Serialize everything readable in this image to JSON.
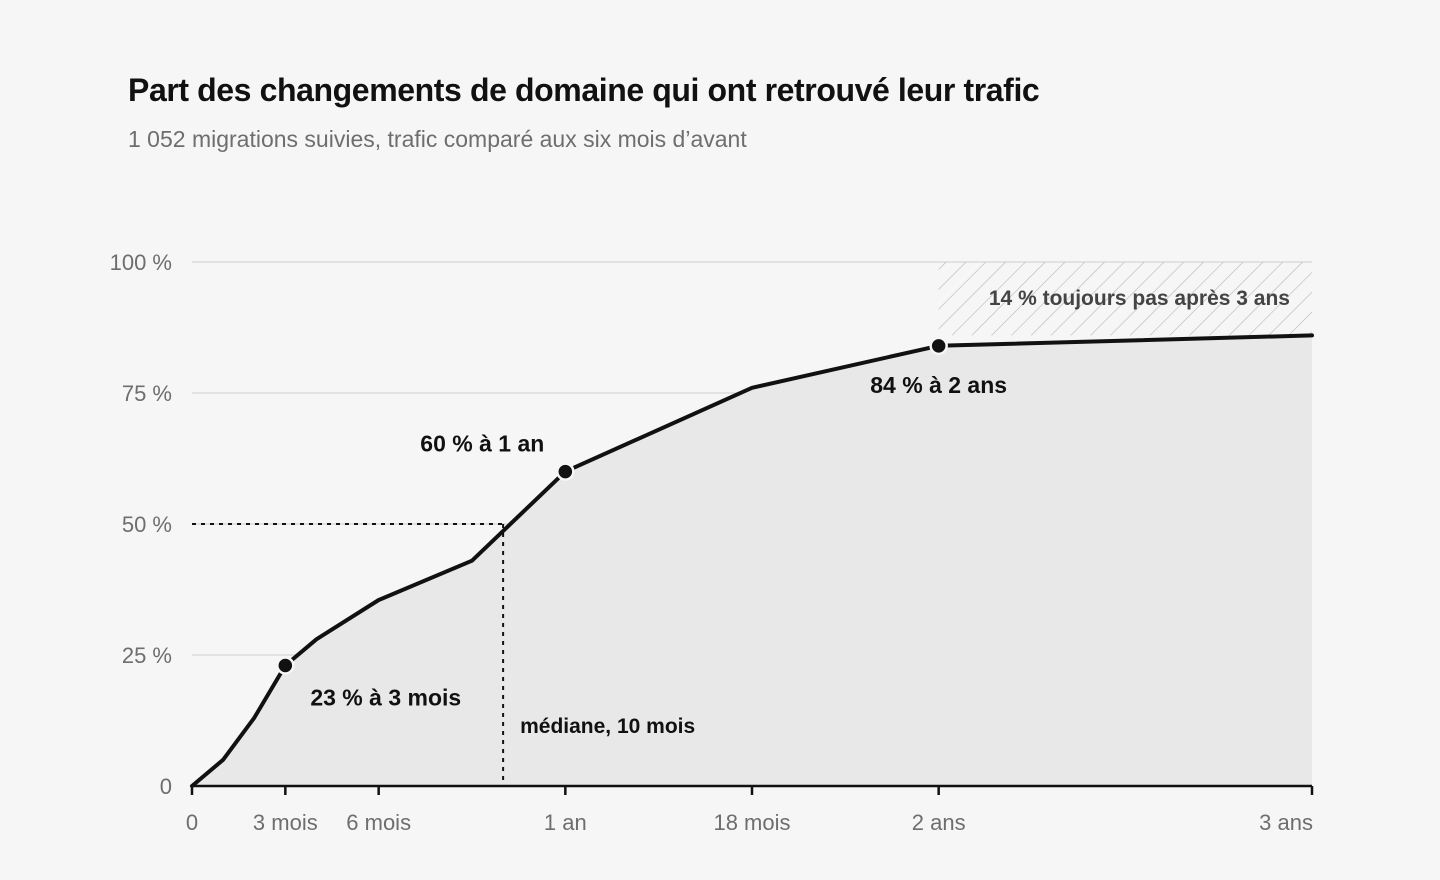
{
  "chart_data": {
    "type": "area",
    "title": "Part des changements de domaine qui ont retrouvé leur trafic",
    "subtitle": "1 052 migrations suivies, trafic comparé aux six mois d’avant",
    "xlabel": "",
    "ylabel": "",
    "x_unit": "mois",
    "xlim": [
      0,
      36
    ],
    "ylim": [
      0,
      100
    ],
    "grid": true,
    "x_ticks": [
      {
        "value": 0,
        "label": "0"
      },
      {
        "value": 3,
        "label": "3 mois"
      },
      {
        "value": 6,
        "label": "6 mois"
      },
      {
        "value": 12,
        "label": "1 an"
      },
      {
        "value": 18,
        "label": "18 mois"
      },
      {
        "value": 24,
        "label": "2 ans"
      },
      {
        "value": 36,
        "label": "3 ans"
      }
    ],
    "y_ticks": [
      {
        "value": 0,
        "label": "0"
      },
      {
        "value": 25,
        "label": "25 %"
      },
      {
        "value": 50,
        "label": "50 %"
      },
      {
        "value": 75,
        "label": "75 %"
      },
      {
        "value": 100,
        "label": "100 %"
      }
    ],
    "series": [
      {
        "x": [
          0,
          1,
          2,
          3,
          4,
          6,
          9,
          12,
          18,
          24,
          36
        ],
        "y": [
          0,
          5,
          13,
          23,
          28,
          35.5,
          43,
          60,
          76,
          84,
          86
        ]
      }
    ],
    "highlights": [
      {
        "x": 3,
        "y": 23,
        "label": "23 % à 3 mois"
      },
      {
        "x": 12,
        "y": 60,
        "label": "60 % à 1 an"
      },
      {
        "x": 24,
        "y": 84,
        "label": "84 % à 2 ans"
      }
    ],
    "median": {
      "x": 10,
      "y": 50,
      "label": "médiane, 10 mois"
    },
    "shaded_region": {
      "x_from": 24,
      "x_to": 36,
      "y_from": 86,
      "y_to": 100,
      "label": "14 % toujours pas après 3 ans"
    },
    "colors": {
      "line": "#111111",
      "area": "#e8e8e8",
      "grid": "#d6d6d6",
      "hatch": "#b5b5b5",
      "background": "#f6f6f6"
    }
  }
}
